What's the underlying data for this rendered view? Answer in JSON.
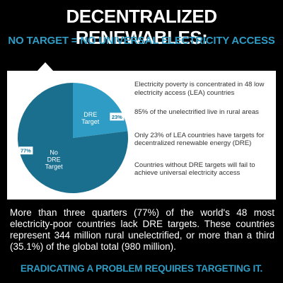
{
  "header": {
    "title": "DECENTRALIZED RENEWABLES:",
    "subtitle": "NO TARGET = NO UNIVERSAL ELECTRICITY ACCESS"
  },
  "chart_data": {
    "type": "pie",
    "title": "",
    "slices": [
      {
        "label": "DRE Target",
        "value": 23,
        "value_label": "23%",
        "color": "#2e9cc4"
      },
      {
        "label": "No DRE Target",
        "value": 77,
        "value_label": "77%",
        "color": "#1a6f8f"
      }
    ]
  },
  "facts": [
    "Electricity poverty is concentrated in 48 low electricity access (LEA) countries",
    "85% of the unelectrified live in rural areas",
    "Only 23% of LEA countries have targets for decentralized renewable energy (DRE)",
    "Countries without DRE targets will fail to achieve universal electricity access"
  ],
  "body": "More than three quarters (77%) of the world's 48 most electricity-poor countries lack DRE targets. These countries represent 344 million rural unelectrified, or more than a third (35.1%) of the global total (980 million).",
  "footer": "ERADICATING A PROBLEM REQUIRES TARGETING IT."
}
